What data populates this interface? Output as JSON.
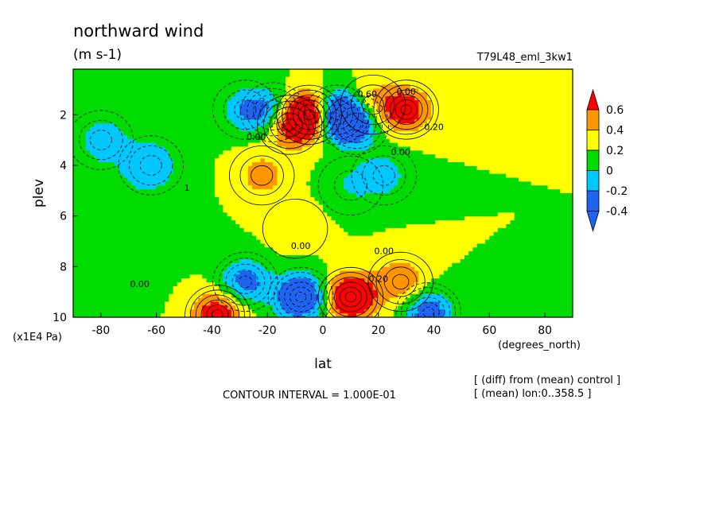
{
  "chart_data": {
    "type": "heatmap",
    "title": "northward wind",
    "units": "(m s-1)",
    "run_label": "T79L48_eml_3kw1",
    "xlabel": "lat",
    "x_unit": "(degrees_north)",
    "ylabel": "plev",
    "y_unit": "(x1E4 Pa)",
    "x_ticks": [
      "-80",
      "-60",
      "-40",
      "-20",
      "0",
      "20",
      "40",
      "60",
      "80"
    ],
    "x_tick_values": [
      -80,
      -60,
      -40,
      -20,
      0,
      20,
      40,
      60,
      80
    ],
    "y_ticks": [
      "2",
      "4",
      "6",
      "8",
      "10"
    ],
    "y_tick_values": [
      2,
      4,
      6,
      8,
      10
    ],
    "xlim": [
      -90,
      90
    ],
    "ylim": [
      10,
      0.2
    ],
    "y_inverted": true,
    "grid": false,
    "legend": "right colorbar",
    "colorbar": {
      "labels": [
        "0.6",
        "0.4",
        "0.2",
        "0",
        "-0.2",
        "-0.4"
      ],
      "levels": [
        -0.6,
        -0.4,
        -0.2,
        0,
        0.2,
        0.4,
        0.6
      ],
      "colors": [
        "#1e64f0",
        "#00c8ff",
        "#00dc00",
        "#ffff00",
        "#ff9600",
        "#ff0000"
      ]
    },
    "contour_interval": "CONTOUR INTERVAL = 1.000E-01",
    "contour_labels": [
      "0.00",
      "0.00",
      "0.00",
      "0.00",
      "0.00",
      "0.00",
      "0.20",
      "0.20",
      "0.60",
      "1"
    ],
    "features": [
      {
        "lat": -5,
        "plev": 2.0,
        "v": 0.9
      },
      {
        "lat": 5,
        "plev": 2.0,
        "v": -0.9
      },
      {
        "lat": -12,
        "plev": 2.4,
        "v": 0.5
      },
      {
        "lat": 12,
        "plev": 2.4,
        "v": -0.5
      },
      {
        "lat": -18,
        "plev": 1.9,
        "v": -0.45
      },
      {
        "lat": 18,
        "plev": 1.6,
        "v": 0.3
      },
      {
        "lat": 30,
        "plev": 1.8,
        "v": 0.55
      },
      {
        "lat": -28,
        "plev": 1.8,
        "v": -0.35
      },
      {
        "lat": -22,
        "plev": 4.4,
        "v": 0.3
      },
      {
        "lat": 22,
        "plev": 4.4,
        "v": -0.3
      },
      {
        "lat": 10,
        "plev": 4.8,
        "v": -0.2
      },
      {
        "lat": -10,
        "plev": 6.5,
        "v": 0.15
      },
      {
        "lat": -8,
        "plev": 9.2,
        "v": -0.8
      },
      {
        "lat": 10,
        "plev": 9.2,
        "v": 0.8
      },
      {
        "lat": -28,
        "plev": 8.6,
        "v": -0.5
      },
      {
        "lat": 28,
        "plev": 8.6,
        "v": 0.4
      },
      {
        "lat": -38,
        "plev": 9.9,
        "v": 0.6
      },
      {
        "lat": 38,
        "plev": 9.8,
        "v": -0.55
      },
      {
        "lat": -62,
        "plev": 4.0,
        "v": -0.3
      },
      {
        "lat": -80,
        "plev": 3.0,
        "v": -0.25
      }
    ]
  },
  "footer": {
    "line1": "[ (diff) from (mean) control ]",
    "line2": "[ (mean) lon:0..358.5 ]"
  }
}
